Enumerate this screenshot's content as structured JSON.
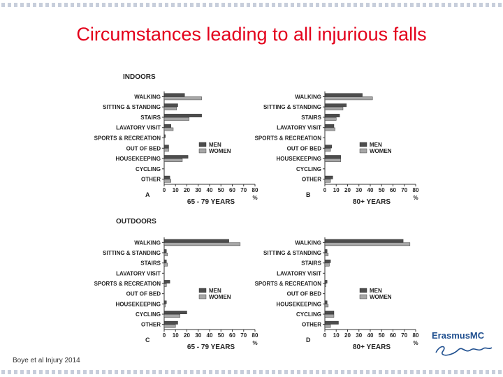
{
  "slide": {
    "title": "Circumstances leading to all injurious falls",
    "citation": "Boye et al Injury 2014",
    "logo_text": "ErasmusMC",
    "logo_script": "Ezafung"
  },
  "colors": {
    "title": "#e3001b",
    "men": "#4d4d4d",
    "women": "#a6a6a6",
    "border": "#c7cedb",
    "logo": "#1f4f8f"
  },
  "section_labels": [
    "INDOORS",
    "OUTDOORS"
  ],
  "chart_data": [
    {
      "type": "bar",
      "orientation": "horizontal",
      "panel_letter": "A",
      "xlabel": "65 - 79 YEARS",
      "unit_label": "%",
      "categories": [
        "WALKING",
        "SITTING & STANDING",
        "STAIRS",
        "LAVATORY VISIT",
        "SPORTS & RECREATION",
        "OUT OF BED",
        "HOUSEKEEPING",
        "CYCLING",
        "OTHER"
      ],
      "series": [
        {
          "name": "MEN",
          "values": [
            18,
            12,
            33,
            6,
            1,
            4,
            21,
            0,
            5
          ]
        },
        {
          "name": "WOMEN",
          "values": [
            33,
            11,
            22,
            8,
            0,
            4,
            16,
            0,
            6
          ]
        }
      ],
      "xlim": [
        0,
        80
      ],
      "xticks": [
        0,
        10,
        20,
        30,
        40,
        50,
        60,
        70,
        80
      ],
      "legend_position": "right"
    },
    {
      "type": "bar",
      "orientation": "horizontal",
      "panel_letter": "B",
      "xlabel": "80+ YEARS",
      "unit_label": "%",
      "categories": [
        "WALKING",
        "SITTING & STANDING",
        "STAIRS",
        "LAVATORY VISIT",
        "SPORTS & RECREATION",
        "OUT OF BED",
        "HOUSEKEEPING",
        "CYCLING",
        "OTHER"
      ],
      "series": [
        {
          "name": "MEN",
          "values": [
            33,
            19,
            13,
            8,
            0,
            6,
            14,
            0,
            7
          ]
        },
        {
          "name": "WOMEN",
          "values": [
            42,
            16,
            10,
            9,
            0,
            5,
            14,
            0,
            5
          ]
        }
      ],
      "xlim": [
        0,
        80
      ],
      "xticks": [
        0,
        10,
        20,
        30,
        40,
        50,
        60,
        70,
        80
      ],
      "legend_position": "right"
    },
    {
      "type": "bar",
      "orientation": "horizontal",
      "panel_letter": "C",
      "xlabel": "65 - 79 YEARS",
      "unit_label": "%",
      "categories": [
        "WALKING",
        "SITTING & STANDING",
        "STAIRS",
        "LAVATORY VISIT",
        "SPORTS & RECREATION",
        "OUT OF BED",
        "HOUSEKEEPING",
        "CYCLING",
        "OTHER"
      ],
      "series": [
        {
          "name": "MEN",
          "values": [
            57,
            2,
            2,
            0,
            5,
            0,
            2,
            20,
            12
          ]
        },
        {
          "name": "WOMEN",
          "values": [
            67,
            3,
            3,
            0,
            2,
            0,
            1,
            14,
            10
          ]
        }
      ],
      "xlim": [
        0,
        80
      ],
      "xticks": [
        0,
        10,
        20,
        30,
        40,
        50,
        60,
        70,
        80
      ],
      "legend_position": "right"
    },
    {
      "type": "bar",
      "orientation": "horizontal",
      "panel_letter": "D",
      "xlabel": "80+ YEARS",
      "unit_label": "%",
      "categories": [
        "WALKING",
        "SITTING & STANDING",
        "STAIRS",
        "LAVATORY VISIT",
        "SPORTS & RECREATION",
        "OUT OF BED",
        "HOUSEKEEPING",
        "CYCLING",
        "OTHER"
      ],
      "series": [
        {
          "name": "MEN",
          "values": [
            69,
            2,
            5,
            0,
            2,
            0,
            2,
            8,
            12
          ]
        },
        {
          "name": "WOMEN",
          "values": [
            75,
            3,
            4,
            0,
            1,
            0,
            3,
            8,
            5
          ]
        }
      ],
      "xlim": [
        0,
        80
      ],
      "xticks": [
        0,
        10,
        20,
        30,
        40,
        50,
        60,
        70,
        80
      ],
      "legend_position": "right"
    }
  ]
}
